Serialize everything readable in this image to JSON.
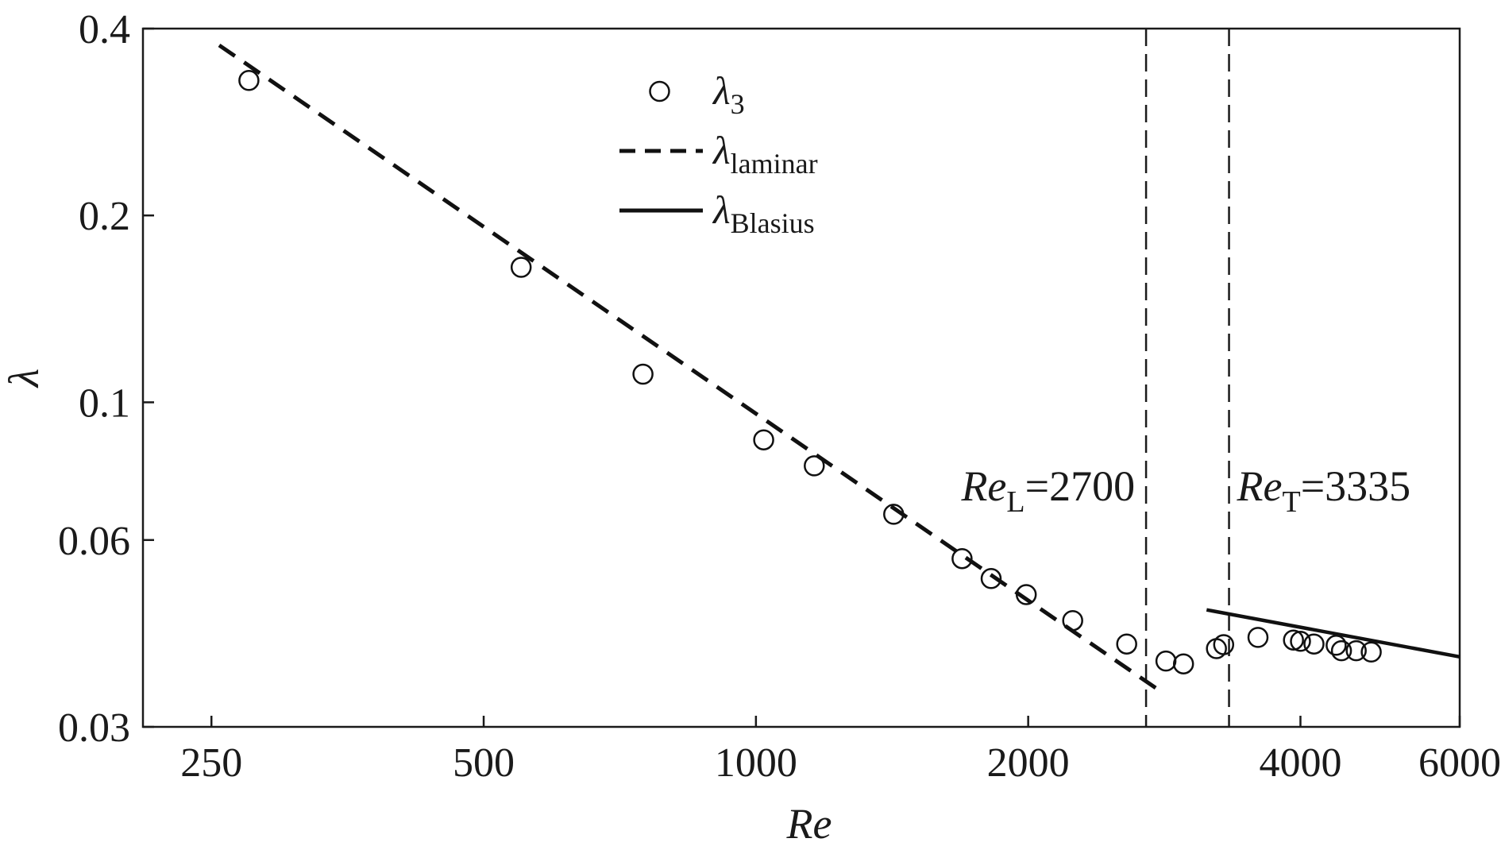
{
  "chart_data": {
    "type": "scatter",
    "xscale": "log",
    "yscale": "log",
    "xlim": [
      210,
      6000
    ],
    "ylim": [
      0.03,
      0.4
    ],
    "xticks": [
      250,
      500,
      1000,
      2000,
      4000,
      6000
    ],
    "xtick_labels": [
      "250",
      "500",
      "1000",
      "2000",
      "4000",
      "6000"
    ],
    "yticks": [
      0.03,
      0.06,
      0.1,
      0.2,
      0.4
    ],
    "ytick_labels": [
      "0.03",
      "0.06",
      "0.1",
      "0.2",
      "0.4"
    ],
    "xlabel": "Re",
    "ylabel": "λ",
    "grid": false,
    "legend_position": "top-center",
    "series": [
      {
        "name": "λ3",
        "name_main": "λ",
        "name_sub": "3",
        "kind": "markers",
        "marker": "open-circle",
        "x": [
          275,
          550,
          750,
          1020,
          1160,
          1420,
          1690,
          1820,
          1990,
          2240,
          2570,
          2840,
          2970,
          3230,
          3290,
          3590,
          3930,
          4000,
          4140,
          4380,
          4440,
          4610,
          4790
        ],
        "y": [
          0.33,
          0.165,
          0.111,
          0.087,
          0.079,
          0.066,
          0.056,
          0.052,
          0.049,
          0.0445,
          0.0408,
          0.0383,
          0.0379,
          0.0401,
          0.0407,
          0.0418,
          0.0414,
          0.0412,
          0.0408,
          0.0406,
          0.0398,
          0.0398,
          0.0396
        ]
      },
      {
        "name": "λlaminar",
        "name_main": "λ",
        "name_sub": "laminar",
        "kind": "line",
        "dash": "dashed",
        "x": [
          255,
          2780
        ],
        "y": [
          0.376,
          0.0345
        ]
      },
      {
        "name": "λBlasius",
        "name_main": "λ",
        "name_sub": "Blasius",
        "kind": "line",
        "dash": "solid",
        "x": [
          3150,
          6000
        ],
        "y": [
          0.0463,
          0.0389
        ]
      }
    ],
    "vlines": [
      {
        "x": 2700,
        "label_main": "Re",
        "label_sub": "L",
        "label_rest": "=2700",
        "dash": "dashed"
      },
      {
        "x": 3335,
        "label_main": "Re",
        "label_sub": "T",
        "label_rest": "=3335",
        "dash": "dashed"
      }
    ]
  }
}
